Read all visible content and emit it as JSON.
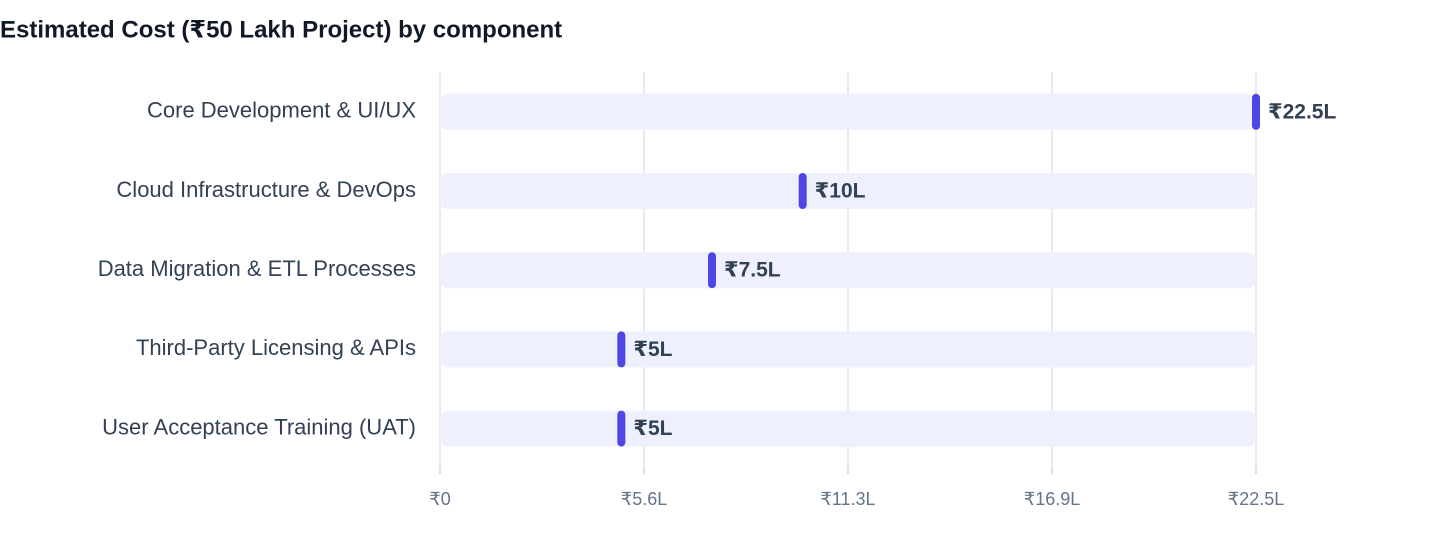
{
  "chart_data": {
    "type": "bar",
    "orientation": "horizontal",
    "title": "Estimated Cost (₹50 Lakh Project) by component",
    "categories": [
      "Core Development & UI/UX",
      "Cloud Infrastructure & DevOps",
      "Data Migration & ETL Processes",
      "Third-Party Licensing & APIs",
      "User Acceptance Training (UAT)"
    ],
    "values": [
      22.5,
      10,
      7.5,
      5,
      5
    ],
    "value_labels": [
      "₹22.5L",
      "₹10L",
      "₹7.5L",
      "₹5L",
      "₹5L"
    ],
    "color": "#4f46e5",
    "xlim": [
      0,
      22.5
    ],
    "xticks": [
      {
        "value": 0,
        "label": "₹0"
      },
      {
        "value": 5.625,
        "label": "₹5.6L"
      },
      {
        "value": 11.25,
        "label": "₹11.3L"
      },
      {
        "value": 16.875,
        "label": "₹16.9L"
      },
      {
        "value": 22.5,
        "label": "₹22.5L"
      }
    ],
    "grid": true
  }
}
